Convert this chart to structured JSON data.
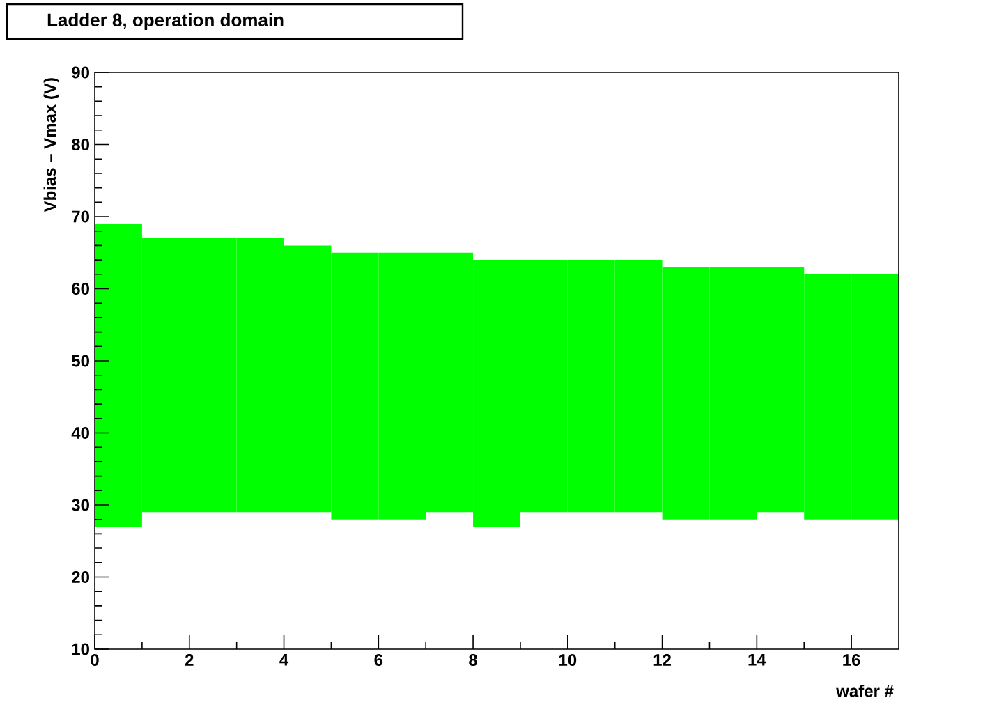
{
  "chart_data": {
    "type": "bar",
    "title": "Ladder  8, operation domain",
    "xlabel": "wafer #",
    "ylabel": "Vbias – Vmax (V)",
    "x": [
      0.5,
      1.5,
      2.5,
      3.5,
      4.5,
      5.5,
      6.5,
      7.5,
      8.5,
      9.5,
      10.5,
      11.5,
      12.5,
      13.5,
      14.5,
      15.5,
      16.5
    ],
    "base": [
      27,
      29,
      29,
      29,
      29,
      28,
      28,
      29,
      27,
      29,
      29,
      29,
      28,
      28,
      29,
      28,
      28
    ],
    "values": [
      42,
      38,
      38,
      38,
      37,
      37,
      37,
      36,
      37,
      35,
      35,
      35,
      35,
      35,
      34,
      34,
      34
    ],
    "color": "#00ff00",
    "xlim": [
      0,
      17
    ],
    "xticks": [
      0,
      2,
      4,
      6,
      8,
      10,
      12,
      14,
      16
    ],
    "ylim": [
      10,
      90
    ],
    "yticks": [
      10,
      20,
      30,
      40,
      50,
      60,
      70,
      80,
      90
    ]
  }
}
